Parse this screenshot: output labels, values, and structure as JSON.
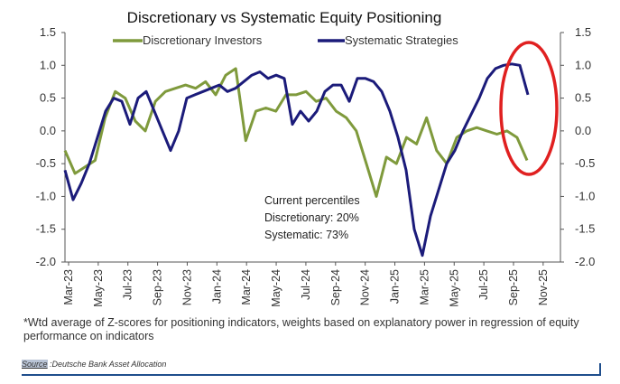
{
  "chart_data": {
    "type": "line",
    "title": "Discretionary  vs Systematic Equity Positioning",
    "ylim": [
      -2.0,
      1.5
    ],
    "y_ticks": [
      "1.5",
      "1.0",
      "0.5",
      "0.0",
      "-0.5",
      "-1.0",
      "-1.5",
      "-2.0"
    ],
    "x_ticks": [
      "Mar-23",
      "May-23",
      "Jul-23",
      "Sep-23",
      "Nov-23",
      "Jan-24",
      "Mar-24",
      "May-24",
      "Jul-24",
      "Sep-24",
      "Nov-24",
      "Jan-25",
      "Mar-25",
      "May-25",
      "Jul-25",
      "Sep-25",
      "Nov-25"
    ],
    "series": [
      {
        "name": "Discretionary Investors",
        "color": "#7f9a3c",
        "points": [
          [
            0,
            -0.3
          ],
          [
            1,
            -0.65
          ],
          [
            2,
            -0.55
          ],
          [
            3,
            -0.45
          ],
          [
            4,
            0.2
          ],
          [
            5,
            0.6
          ],
          [
            6,
            0.5
          ],
          [
            7,
            0.15
          ],
          [
            8,
            0.0
          ],
          [
            9,
            0.45
          ],
          [
            10,
            0.6
          ],
          [
            11,
            0.65
          ],
          [
            12,
            0.7
          ],
          [
            13,
            0.65
          ],
          [
            14,
            0.75
          ],
          [
            15,
            0.55
          ],
          [
            16,
            0.85
          ],
          [
            17,
            0.95
          ],
          [
            18,
            -0.15
          ],
          [
            19,
            0.3
          ],
          [
            20,
            0.35
          ],
          [
            21,
            0.3
          ],
          [
            22,
            0.55
          ],
          [
            23,
            0.55
          ],
          [
            24,
            0.6
          ],
          [
            25,
            0.45
          ],
          [
            26,
            0.5
          ],
          [
            27,
            0.3
          ],
          [
            28,
            0.2
          ],
          [
            29,
            0.0
          ],
          [
            30,
            -0.5
          ],
          [
            31,
            -1.0
          ],
          [
            32,
            -0.4
          ],
          [
            33,
            -0.5
          ],
          [
            34,
            -0.1
          ],
          [
            35,
            -0.2
          ],
          [
            36,
            0.2
          ],
          [
            37,
            -0.3
          ],
          [
            38,
            -0.5
          ],
          [
            39,
            -0.1
          ],
          [
            40,
            0.0
          ],
          [
            41,
            0.05
          ],
          [
            42,
            0.0
          ],
          [
            43,
            -0.05
          ],
          [
            44,
            0.0
          ],
          [
            45,
            -0.1
          ],
          [
            46,
            -0.45
          ]
        ]
      },
      {
        "name": "Systematic Strategies",
        "color": "#1b1b7a",
        "points": [
          [
            0,
            -0.6
          ],
          [
            1,
            -1.05
          ],
          [
            2,
            -0.8
          ],
          [
            3,
            -0.5
          ],
          [
            4,
            -0.1
          ],
          [
            5,
            0.3
          ],
          [
            6,
            0.5
          ],
          [
            7,
            0.45
          ],
          [
            8,
            0.1
          ],
          [
            9,
            0.5
          ],
          [
            10,
            0.6
          ],
          [
            11,
            0.3
          ],
          [
            12,
            0.0
          ],
          [
            13,
            -0.3
          ],
          [
            14,
            0.0
          ],
          [
            15,
            0.5
          ],
          [
            16,
            0.55
          ],
          [
            17,
            0.6
          ],
          [
            18,
            0.65
          ],
          [
            19,
            0.7
          ],
          [
            20,
            0.6
          ],
          [
            21,
            0.65
          ],
          [
            22,
            0.75
          ],
          [
            23,
            0.85
          ],
          [
            24,
            0.9
          ],
          [
            25,
            0.8
          ],
          [
            26,
            0.85
          ],
          [
            27,
            0.8
          ],
          [
            28,
            0.1
          ],
          [
            29,
            0.3
          ],
          [
            30,
            0.15
          ],
          [
            31,
            0.3
          ],
          [
            32,
            0.6
          ],
          [
            33,
            0.7
          ],
          [
            34,
            0.7
          ],
          [
            35,
            0.45
          ],
          [
            36,
            0.8
          ],
          [
            37,
            0.8
          ],
          [
            38,
            0.75
          ],
          [
            39,
            0.6
          ],
          [
            40,
            0.3
          ],
          [
            41,
            -0.1
          ],
          [
            42,
            -0.6
          ],
          [
            43,
            -1.5
          ],
          [
            44,
            -1.9
          ],
          [
            45,
            -1.3
          ],
          [
            46,
            -0.9
          ],
          [
            47,
            -0.5
          ],
          [
            48,
            -0.3
          ],
          [
            49,
            0.0
          ],
          [
            50,
            0.25
          ],
          [
            51,
            0.5
          ],
          [
            52,
            0.8
          ],
          [
            53,
            0.95
          ],
          [
            54,
            1.0
          ],
          [
            55,
            1.02
          ],
          [
            56,
            1.0
          ],
          [
            57,
            0.55
          ]
        ]
      }
    ],
    "annotations": [
      "Current percentiles",
      "Discretionary: 20%",
      "Systematic: 73%"
    ]
  },
  "footnote": "*Wtd average of Z-scores for positioning indicators, weights based on explanatory power in regression of equity performance on indicators",
  "source": {
    "label": "Source",
    "text": " :Deutsche Bank Asset Allocation"
  },
  "highlight_color": "#e02020"
}
